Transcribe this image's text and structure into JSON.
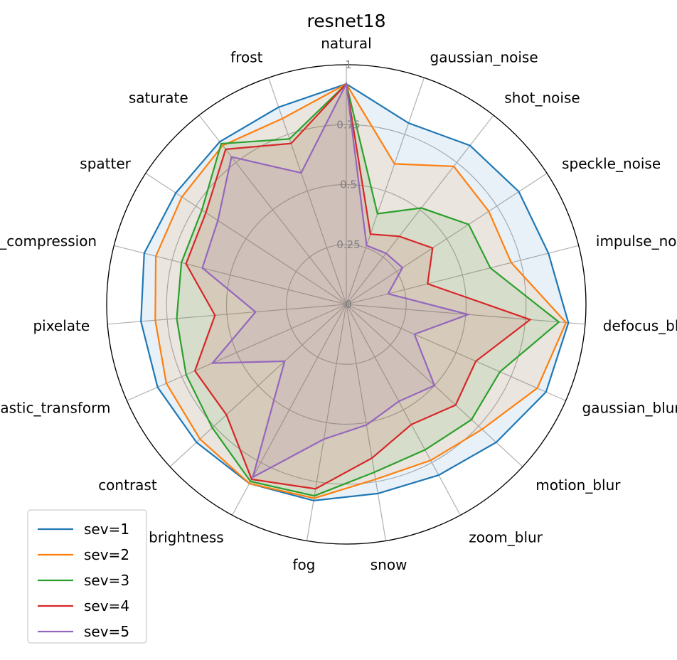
{
  "chart_data": {
    "type": "radar",
    "title": "resnet18",
    "categories": [
      "natural",
      "gaussian_noise",
      "shot_noise",
      "speckle_noise",
      "impulse_noise",
      "defocus_blur",
      "gaussian_blur",
      "motion_blur",
      "zoom_blur",
      "snow",
      "fog",
      "brightness",
      "contrast",
      "elastic_transform",
      "pixelate",
      "jpeg_compression",
      "spatter",
      "saturate",
      "frost"
    ],
    "r_ticks": [
      0,
      0.25,
      0.5,
      0.75,
      1
    ],
    "r_tick_labels": [
      "0",
      "0.25",
      "0.5",
      "0.75",
      "1"
    ],
    "rlim": [
      0,
      1
    ],
    "grid": true,
    "legend_position": "lower-left",
    "series": [
      {
        "name": "sev=1",
        "color": "#1f77b4",
        "fill": true,
        "values": [
          0.92,
          0.8,
          0.84,
          0.86,
          0.87,
          0.93,
          0.91,
          0.85,
          0.81,
          0.8,
          0.83,
          0.85,
          0.85,
          0.86,
          0.86,
          0.87,
          0.85,
          0.86,
          0.87
        ]
      },
      {
        "name": "sev=2",
        "color": "#ff7f0e",
        "fill": true,
        "values": [
          0.92,
          0.62,
          0.73,
          0.71,
          0.71,
          0.92,
          0.87,
          0.77,
          0.74,
          0.74,
          0.82,
          0.85,
          0.83,
          0.82,
          0.8,
          0.82,
          0.82,
          0.84,
          0.82
        ]
      },
      {
        "name": "sev=3",
        "color": "#2ca02c",
        "fill": true,
        "values": [
          0.92,
          0.4,
          0.51,
          0.61,
          0.62,
          0.89,
          0.7,
          0.71,
          0.69,
          0.71,
          0.81,
          0.84,
          0.76,
          0.73,
          0.71,
          0.71,
          0.72,
          0.85,
          0.73
        ]
      },
      {
        "name": "sev=4",
        "color": "#d62728",
        "fill": true,
        "values": [
          0.92,
          0.31,
          0.36,
          0.43,
          0.35,
          0.77,
          0.59,
          0.62,
          0.57,
          0.65,
          0.78,
          0.83,
          0.68,
          0.69,
          0.55,
          0.69,
          0.7,
          0.82,
          0.71
        ]
      },
      {
        "name": "sev=5",
        "color": "#9467bd",
        "fill": true,
        "values": [
          0.92,
          0.26,
          0.27,
          0.28,
          0.18,
          0.51,
          0.31,
          0.5,
          0.46,
          0.51,
          0.57,
          0.82,
          0.35,
          0.61,
          0.38,
          0.62,
          0.64,
          0.78,
          0.58
        ]
      }
    ]
  }
}
